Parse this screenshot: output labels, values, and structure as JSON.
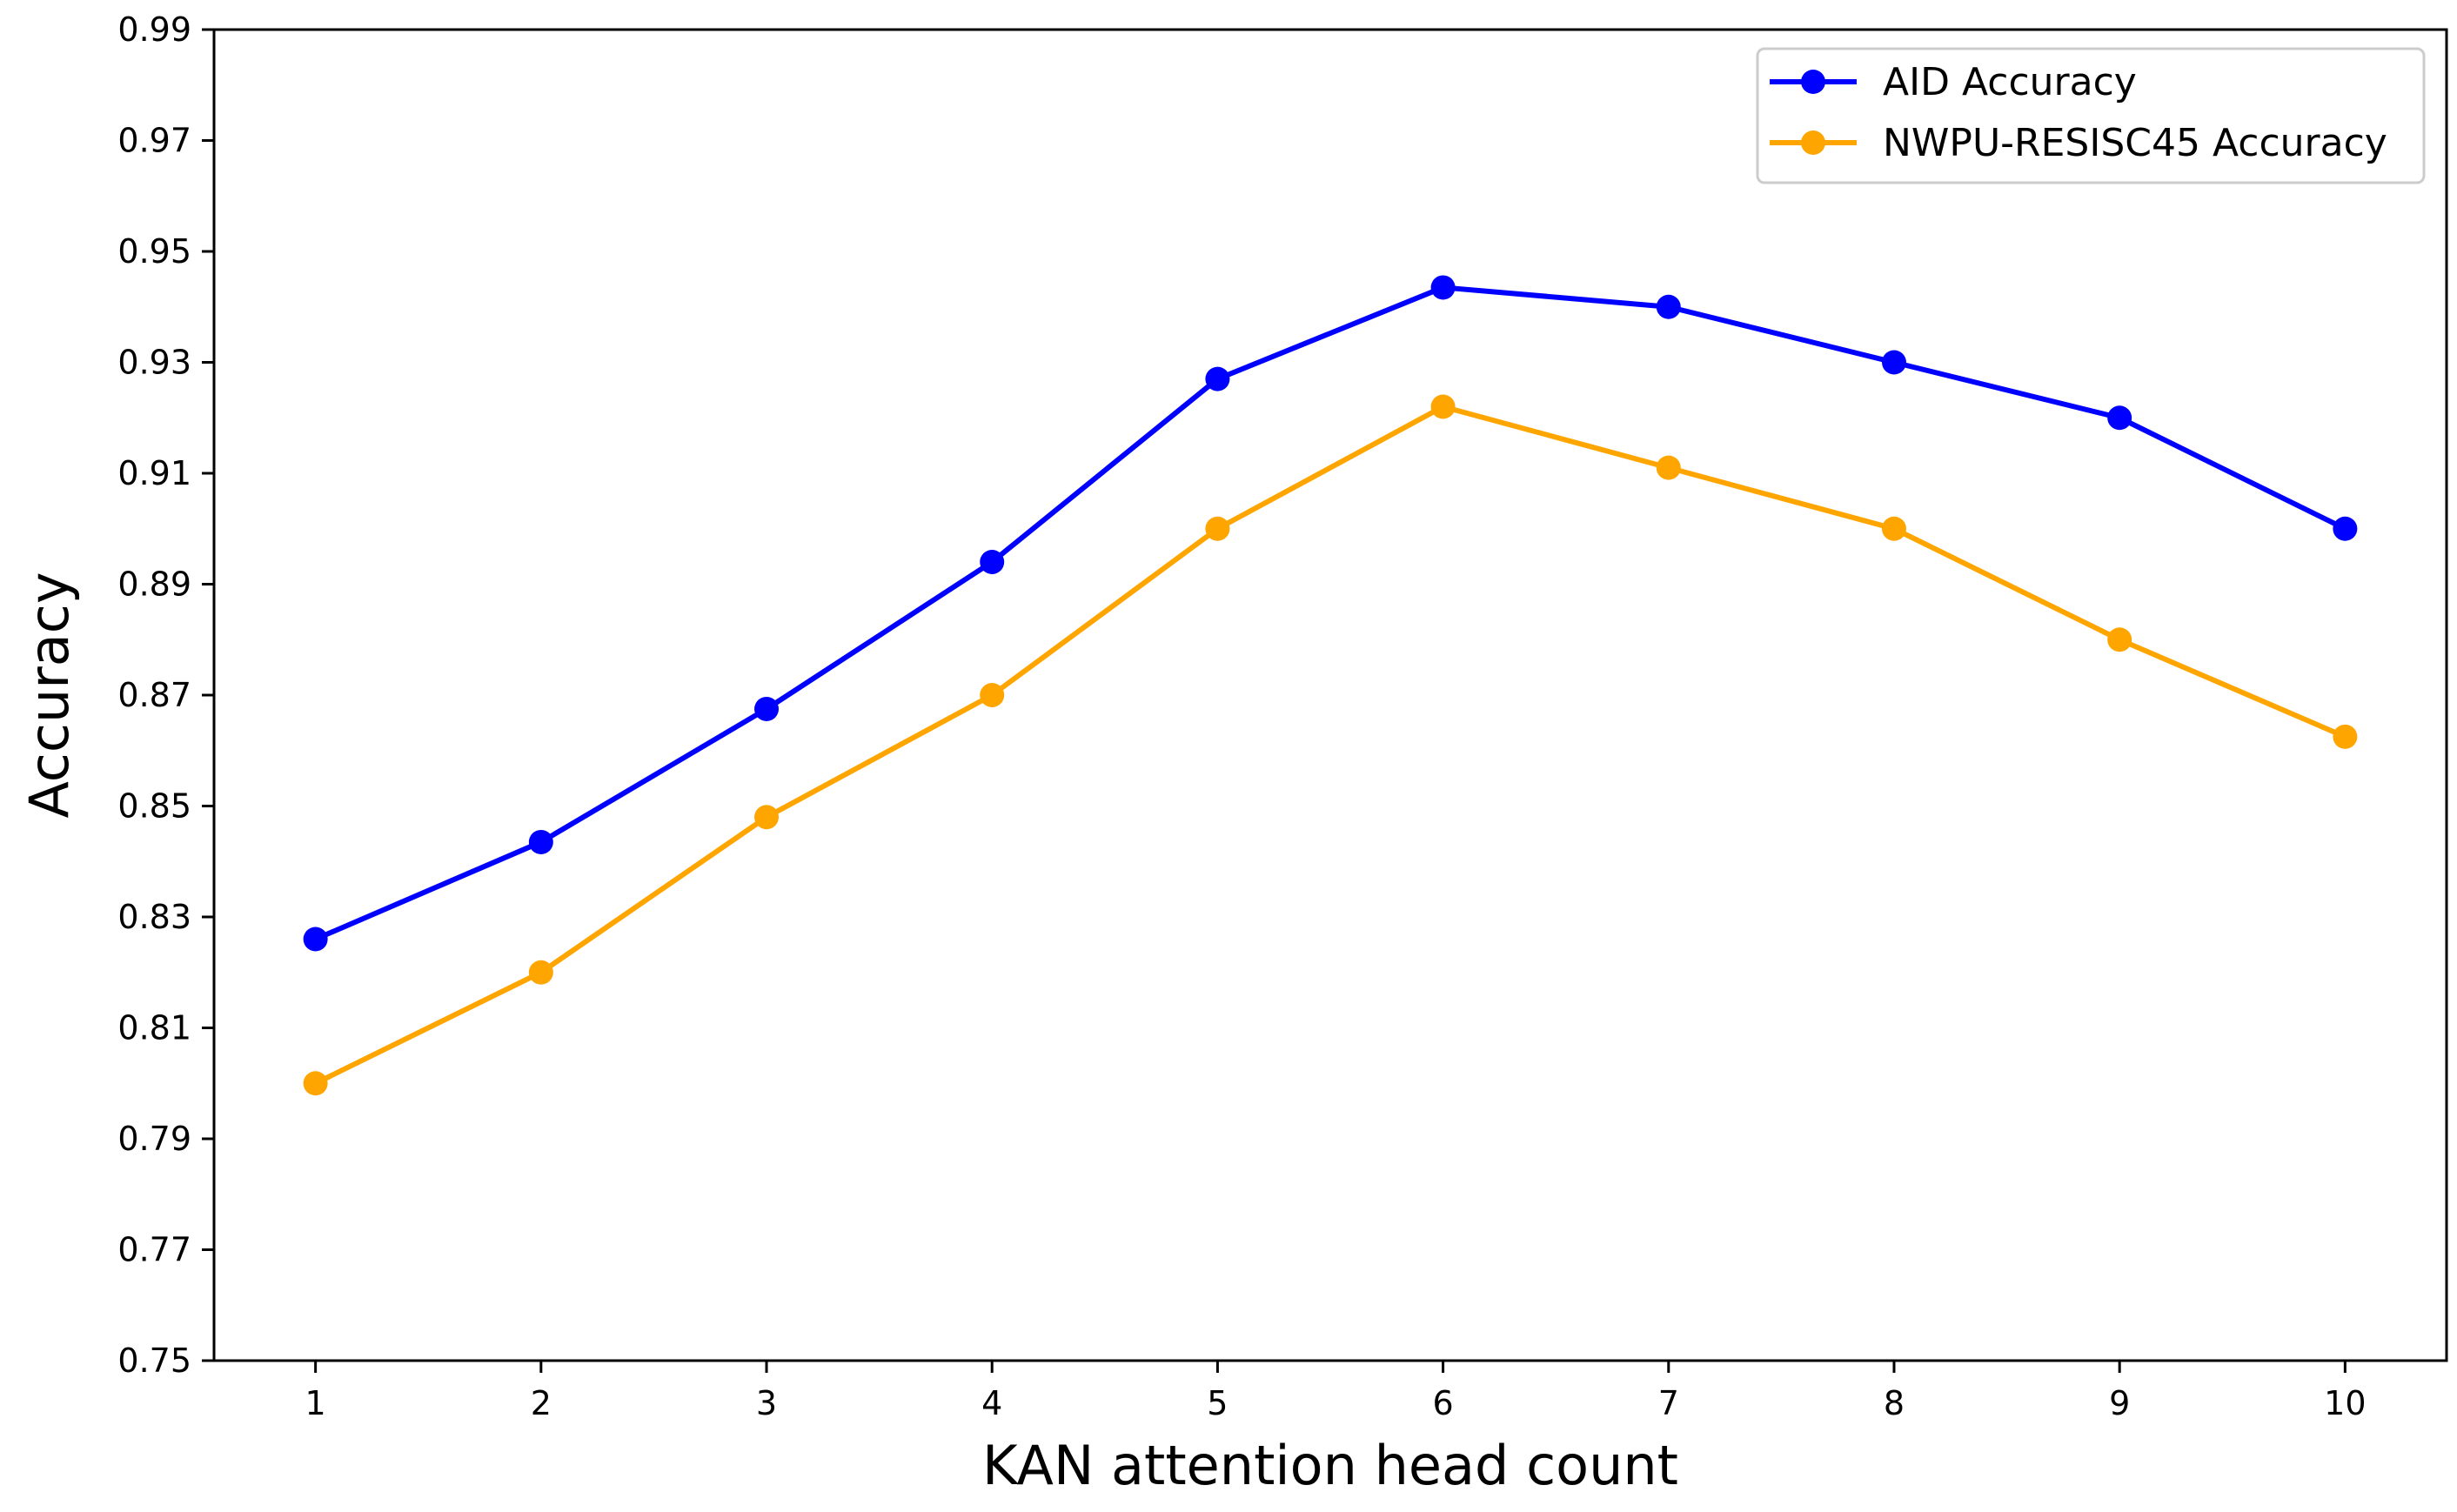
{
  "chart_data": {
    "type": "line",
    "title": "",
    "xlabel": "KAN attention head count",
    "ylabel": "Accuracy",
    "x": [
      1,
      2,
      3,
      4,
      5,
      6,
      7,
      8,
      9,
      10
    ],
    "x_tick_labels": [
      "1",
      "2",
      "3",
      "4",
      "5",
      "6",
      "7",
      "8",
      "9",
      "10"
    ],
    "y_tick_labels": [
      "0.75",
      "0.77",
      "0.79",
      "0.81",
      "0.83",
      "0.85",
      "0.87",
      "0.89",
      "0.91",
      "0.93",
      "0.95",
      "0.97",
      "0.99"
    ],
    "y_ticks": [
      0.75,
      0.77,
      0.79,
      0.81,
      0.83,
      0.85,
      0.87,
      0.89,
      0.91,
      0.93,
      0.95,
      0.97,
      0.99
    ],
    "xlim": [
      0.55,
      10.45
    ],
    "ylim": [
      0.75,
      0.99
    ],
    "grid": false,
    "legend_position": "top-right",
    "series": [
      {
        "name": "AID Accuracy",
        "color": "#0000ff",
        "marker": "circle",
        "values": [
          0.826,
          0.8435,
          0.8675,
          0.894,
          0.927,
          0.9435,
          0.94,
          0.93,
          0.92,
          0.9
        ]
      },
      {
        "name": "NWPU-RESISC45 Accuracy",
        "color": "#ffa500",
        "marker": "circle",
        "values": [
          0.8,
          0.82,
          0.848,
          0.87,
          0.9,
          0.922,
          0.911,
          0.9,
          0.88,
          0.8625
        ]
      }
    ]
  }
}
